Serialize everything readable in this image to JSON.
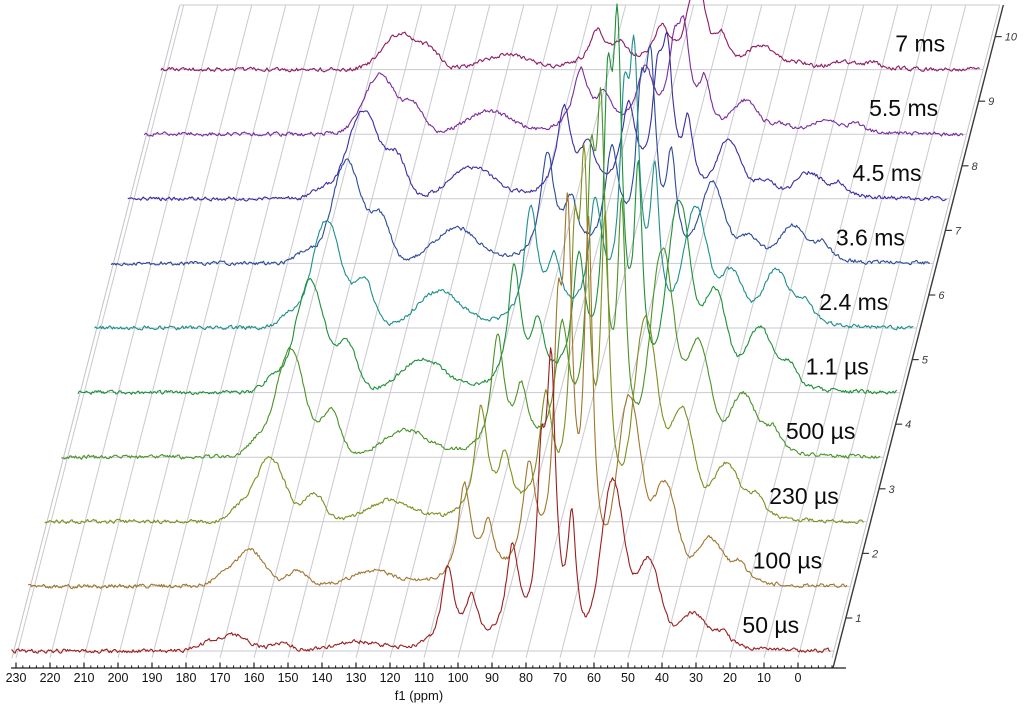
{
  "figure": {
    "kind": "solid-state NMR contact-time stack plot",
    "background": "#ffffff"
  },
  "chart_data": {
    "type": "line",
    "variant": "stacked-waterfall",
    "title": "",
    "xlabel": "f1 (ppm)",
    "x_ticks": [
      230,
      220,
      210,
      200,
      190,
      180,
      170,
      160,
      150,
      140,
      130,
      120,
      110,
      100,
      90,
      80,
      70,
      60,
      50,
      40,
      30,
      20,
      10,
      0
    ],
    "x_minor_step_ppm": 2,
    "x_range_ppm": [
      231.5,
      -10
    ],
    "grid": true,
    "right_axis_ticks": [
      "1",
      "2",
      "3",
      "4",
      "5",
      "6",
      "7",
      "8",
      "9",
      "10"
    ],
    "grid_color": "#c9c9d0",
    "frame_color": "#c2c2ca",
    "axis_color": "#1a1a1a",
    "right_axis_color": "#3a3a3a",
    "traces": [
      {
        "index": 1,
        "label": "50 µs",
        "color": "#9B1E1E",
        "peaks": [
          [
            174,
            6,
            4
          ],
          [
            166,
            16,
            6
          ],
          [
            152,
            8,
            4
          ],
          [
            130,
            8,
            9
          ],
          [
            103,
            78,
            2.2
          ],
          [
            96,
            45,
            2.2
          ],
          [
            84,
            95,
            2.3
          ],
          [
            75.5,
            150,
            1.6
          ],
          [
            72.6,
            255,
            1.6
          ],
          [
            66.5,
            120,
            1.5
          ],
          [
            54.5,
            165,
            4.8
          ],
          [
            44,
            90,
            5
          ],
          [
            31,
            35,
            5.5
          ],
          [
            22,
            18,
            3
          ]
        ]
      },
      {
        "index": 2,
        "label": "100 µs",
        "color": "#A1752D",
        "peaks": [
          [
            174,
            9,
            4
          ],
          [
            166,
            36,
            6
          ],
          [
            152,
            16,
            4
          ],
          [
            130,
            14,
            9
          ],
          [
            103,
            95,
            2.2
          ],
          [
            96,
            52,
            2.2
          ],
          [
            84,
            108,
            2.3
          ],
          [
            75.5,
            210,
            1.6
          ],
          [
            72.6,
            320,
            1.6
          ],
          [
            66.5,
            340,
            1.5
          ],
          [
            54.5,
            180,
            4.8
          ],
          [
            44,
            100,
            5
          ],
          [
            31,
            45,
            5.5
          ],
          [
            22,
            22,
            3
          ]
        ]
      },
      {
        "index": 3,
        "label": "230 µs",
        "color": "#7F8F1F",
        "peaks": [
          [
            174,
            12,
            4
          ],
          [
            165,
            64,
            6
          ],
          [
            152,
            28,
            4
          ],
          [
            130,
            20,
            9
          ],
          [
            103,
            108,
            2.2
          ],
          [
            96,
            55,
            2.2
          ],
          [
            84,
            112,
            2.3
          ],
          [
            75.5,
            225,
            1.6
          ],
          [
            72.6,
            300,
            1.6
          ],
          [
            66.5,
            280,
            1.5
          ],
          [
            54.5,
            195,
            4.8
          ],
          [
            44,
            110,
            5
          ],
          [
            31,
            55,
            5.5
          ],
          [
            22,
            25,
            3
          ]
        ]
      },
      {
        "index": 4,
        "label": "500 µs",
        "color": "#4B9327",
        "peaks": [
          [
            174,
            14,
            4
          ],
          [
            164,
            108,
            6
          ],
          [
            152,
            45,
            4
          ],
          [
            130,
            26,
            9
          ],
          [
            103,
            116,
            2.2
          ],
          [
            96,
            58,
            2.2
          ],
          [
            84,
            118,
            2.3
          ],
          [
            75.5,
            235,
            1.6
          ],
          [
            72.6,
            295,
            1.6
          ],
          [
            66.5,
            230,
            1.5
          ],
          [
            54.5,
            200,
            4.8
          ],
          [
            44,
            112,
            5
          ],
          [
            31,
            60,
            5.5
          ],
          [
            22,
            27,
            3
          ]
        ]
      },
      {
        "index": 5,
        "label": "1.1 µs",
        "color": "#1F9038",
        "peaks": [
          [
            174,
            14,
            4
          ],
          [
            163,
            112,
            6
          ],
          [
            152,
            48,
            4
          ],
          [
            130,
            32,
            9
          ],
          [
            103,
            120,
            2.2
          ],
          [
            96,
            60,
            2.2
          ],
          [
            84,
            120,
            2.3
          ],
          [
            75.5,
            250,
            1.6
          ],
          [
            72.6,
            310,
            1.6
          ],
          [
            66.5,
            200,
            1.5
          ],
          [
            54.5,
            185,
            4.8
          ],
          [
            44,
            100,
            5
          ],
          [
            31,
            62,
            5.5
          ],
          [
            22,
            28,
            3
          ]
        ]
      },
      {
        "index": 6,
        "label": "2.4 ms",
        "color": "#1D8F8E",
        "peaks": [
          [
            174,
            13,
            4
          ],
          [
            163,
            108,
            6
          ],
          [
            152,
            46,
            4
          ],
          [
            130,
            35,
            9
          ],
          [
            103,
            115,
            2.3
          ],
          [
            96,
            58,
            2.3
          ],
          [
            84,
            115,
            2.4
          ],
          [
            75.5,
            180,
            1.7
          ],
          [
            72.6,
            230,
            1.7
          ],
          [
            66.5,
            140,
            1.6
          ],
          [
            54.5,
            115,
            4.8
          ],
          [
            44,
            55,
            5
          ],
          [
            31,
            55,
            5.5
          ],
          [
            22,
            26,
            3
          ]
        ]
      },
      {
        "index": 7,
        "label": "3.6 ms",
        "color": "#2C4A9B",
        "peaks": [
          [
            174,
            12,
            4
          ],
          [
            162,
            103,
            6
          ],
          [
            152,
            44,
            4
          ],
          [
            130,
            34,
            9
          ],
          [
            103,
            104,
            2.4
          ],
          [
            96,
            52,
            2.4
          ],
          [
            84,
            104,
            2.5
          ],
          [
            75.5,
            130,
            1.8
          ],
          [
            72.6,
            170,
            1.8
          ],
          [
            66.5,
            95,
            1.7
          ],
          [
            54.5,
            75,
            4.8
          ],
          [
            44,
            25,
            5
          ],
          [
            31,
            35,
            5.5
          ],
          [
            22,
            20,
            3
          ]
        ]
      },
      {
        "index": 8,
        "label": "4.5 ms",
        "color": "#3A2EA3",
        "peaks": [
          [
            174,
            10,
            4
          ],
          [
            162,
            88,
            6.5
          ],
          [
            152,
            38,
            4
          ],
          [
            130,
            30,
            9
          ],
          [
            103,
            86,
            2.5
          ],
          [
            96,
            45,
            2.5
          ],
          [
            84,
            86,
            2.6
          ],
          [
            75.5,
            95,
            1.9
          ],
          [
            72.6,
            125,
            1.9
          ],
          [
            66.5,
            68,
            1.8
          ],
          [
            54.5,
            55,
            4.8
          ],
          [
            44,
            16,
            5
          ],
          [
            31,
            24,
            5.5
          ],
          [
            22,
            15,
            3
          ]
        ]
      },
      {
        "index": 9,
        "label": "5.5 ms",
        "color": "#7B2B9E",
        "peaks": [
          [
            162,
            60,
            6.5
          ],
          [
            152,
            26,
            4
          ],
          [
            130,
            22,
            9
          ],
          [
            103,
            60,
            2.7
          ],
          [
            96,
            32,
            2.7
          ],
          [
            84,
            60,
            2.8
          ],
          [
            75.5,
            66,
            2.1
          ],
          [
            72.6,
            86,
            2.1
          ],
          [
            66.5,
            45,
            2
          ],
          [
            54.5,
            30,
            5
          ],
          [
            44,
            9,
            5
          ],
          [
            31,
            12,
            5.5
          ],
          [
            22,
            10,
            3
          ]
        ]
      },
      {
        "index": 10,
        "label": "7 ms",
        "color": "#901A62",
        "peaks": [
          [
            161,
            36,
            7
          ],
          [
            152,
            16,
            4
          ],
          [
            130,
            14,
            9
          ],
          [
            103,
            36,
            2.9
          ],
          [
            96,
            20,
            2.9
          ],
          [
            84,
            38,
            3
          ],
          [
            75.5,
            42,
            2.3
          ],
          [
            72.6,
            56,
            2.3
          ],
          [
            66.5,
            28,
            2.2
          ],
          [
            54.5,
            22,
            5.5
          ],
          [
            44,
            6,
            5
          ],
          [
            31,
            7,
            5.5
          ],
          [
            22,
            7,
            3
          ]
        ]
      }
    ]
  }
}
